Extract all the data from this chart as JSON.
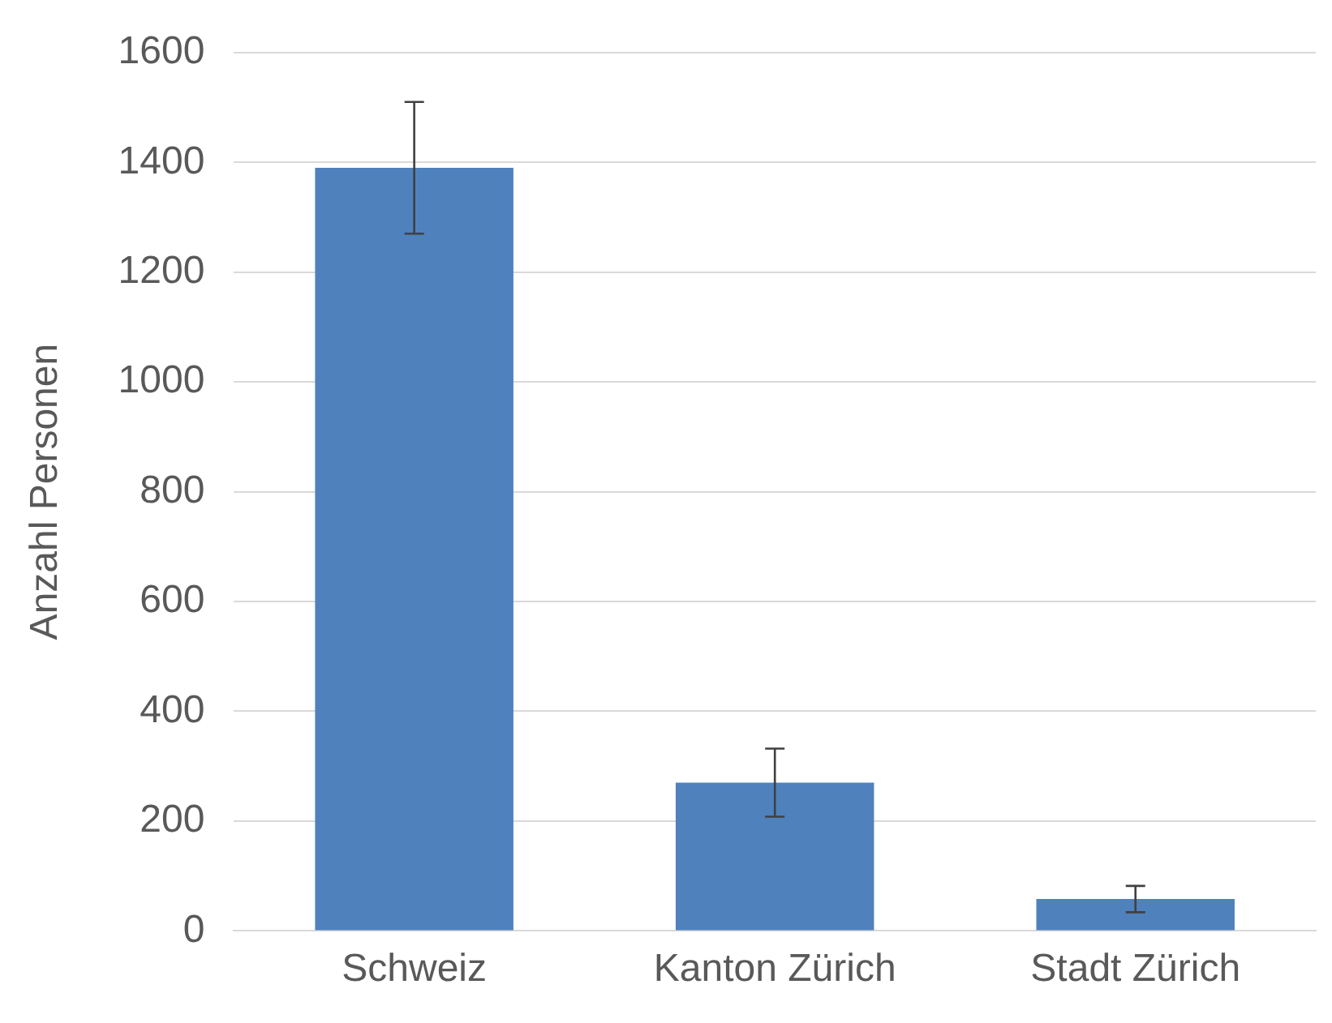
{
  "chart_data": {
    "type": "bar",
    "ylabel": "Anzahl Personen",
    "categories": [
      "Schweiz",
      "Kanton Zürich",
      "Stadt Zürich"
    ],
    "values": [
      1390,
      270,
      58
    ],
    "errors": [
      120,
      62,
      24
    ],
    "color": "#4f81bd",
    "ylim": [
      0,
      1600
    ],
    "yticks": [
      0,
      200,
      400,
      600,
      800,
      1000,
      1200,
      1400,
      1600
    ],
    "grid": "y",
    "legend": false
  }
}
